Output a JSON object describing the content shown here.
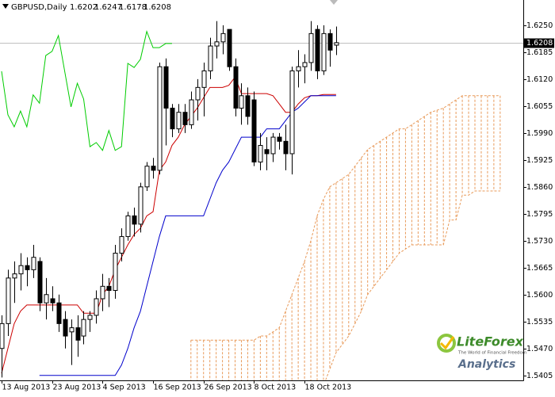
{
  "chart_data": {
    "type": "candlestick",
    "title": "GBPUSD,Daily",
    "ylim": [
      1.5393,
      1.6311
    ],
    "yticks": [
      {
        "value": 1.625,
        "label": "1.6250"
      },
      1.6185,
      {
        "value": 1.612,
        "label": "1.6120"
      },
      1.6055,
      {
        "value": 1.599,
        "label": "1.5990"
      },
      1.5925,
      {
        "value": 1.586,
        "label": "1.5860"
      },
      1.5795,
      {
        "value": 1.573,
        "label": "1.5730"
      },
      1.5665,
      {
        "value": 1.56,
        "label": "1.5600"
      },
      1.5535,
      {
        "value": 1.547,
        "label": "1.5470"
      },
      1.5405
    ],
    "categories": [
      "13 Aug 2013",
      null,
      null,
      null,
      null,
      null,
      null,
      null,
      "23 Aug 2013",
      null,
      null,
      null,
      null,
      null,
      null,
      null,
      "4 Sep 2013",
      null,
      null,
      null,
      null,
      null,
      null,
      null,
      "16 Sep 2013",
      null,
      null,
      null,
      null,
      null,
      null,
      null,
      "26 Sep 2013",
      null,
      null,
      null,
      null,
      null,
      null,
      null,
      "8 Oct 2013",
      null,
      null,
      null,
      null,
      null,
      null,
      null,
      "18 Oct 2013",
      null,
      null,
      null,
      null,
      null,
      null,
      null,
      null,
      null,
      null,
      null,
      null,
      null,
      null,
      null,
      null,
      null,
      null,
      null,
      null,
      null,
      null,
      null,
      null,
      null,
      null,
      null,
      null,
      null,
      null,
      null
    ],
    "open": [
      1.547,
      1.553,
      1.564,
      1.565,
      1.567,
      1.566,
      1.568,
      1.558,
      1.559,
      1.558,
      1.554,
      1.551,
      1.552,
      1.55,
      1.554,
      1.555,
      1.559,
      1.562,
      1.561,
      1.57,
      1.574,
      1.579,
      1.577,
      1.586,
      1.591,
      1.59,
      1.615,
      1.605,
      1.6,
      1.604,
      1.601,
      1.607,
      1.61,
      1.614,
      1.62,
      1.621,
      1.624,
      1.615,
      1.605,
      1.608,
      1.607,
      1.592,
      1.595,
      1.594,
      1.598,
      1.597,
      1.594,
      1.614,
      1.615,
      1.616,
      1.624,
      1.614,
      1.623,
      1.6202,
      null,
      null,
      null,
      null,
      null,
      null,
      null,
      null,
      null,
      null,
      null,
      null,
      null,
      null,
      null,
      null,
      null,
      null,
      null,
      null,
      null,
      null,
      null,
      null,
      null,
      null
    ],
    "high": [
      1.555,
      1.566,
      1.568,
      1.57,
      1.569,
      1.572,
      1.569,
      1.564,
      1.562,
      1.56,
      1.556,
      1.554,
      1.555,
      1.556,
      1.556,
      1.561,
      1.565,
      1.564,
      1.572,
      1.576,
      1.58,
      1.581,
      1.587,
      1.592,
      1.593,
      1.616,
      1.617,
      1.606,
      1.606,
      1.606,
      1.609,
      1.612,
      1.616,
      1.622,
      1.626,
      1.625,
      1.624,
      1.617,
      1.611,
      1.61,
      1.609,
      1.599,
      1.598,
      1.599,
      1.599,
      1.601,
      1.615,
      1.619,
      1.618,
      1.626,
      1.625,
      1.625,
      1.624,
      1.6247,
      null,
      null,
      null,
      null,
      null,
      null,
      null,
      null,
      null,
      null,
      null,
      null,
      null,
      null,
      null,
      null,
      null,
      null,
      null,
      null,
      null,
      null,
      null,
      null,
      null,
      null
    ],
    "low": [
      1.54,
      1.55,
      1.558,
      1.561,
      1.562,
      1.564,
      1.556,
      1.554,
      1.556,
      1.551,
      1.547,
      1.543,
      1.545,
      1.548,
      1.551,
      1.553,
      1.556,
      1.557,
      1.559,
      1.568,
      1.573,
      1.574,
      1.575,
      1.585,
      1.588,
      1.589,
      1.596,
      1.598,
      1.599,
      1.599,
      1.6,
      1.602,
      1.603,
      1.612,
      1.617,
      1.618,
      1.614,
      1.603,
      1.601,
      1.601,
      1.591,
      1.59,
      1.59,
      1.592,
      1.595,
      1.59,
      1.589,
      1.61,
      1.611,
      1.614,
      1.612,
      1.613,
      1.615,
      1.6178,
      null,
      null,
      null,
      null,
      null,
      null,
      null,
      null,
      null,
      null,
      null,
      null,
      null,
      null,
      null,
      null,
      null,
      null,
      null,
      null,
      null,
      null,
      null,
      null,
      null,
      null
    ],
    "close": [
      1.553,
      1.564,
      1.565,
      1.567,
      1.566,
      1.569,
      1.558,
      1.56,
      1.558,
      1.553,
      1.55,
      1.552,
      1.549,
      1.554,
      1.555,
      1.559,
      1.562,
      1.561,
      1.57,
      1.574,
      1.579,
      1.577,
      1.586,
      1.591,
      1.59,
      1.615,
      1.605,
      1.6,
      1.604,
      1.601,
      1.607,
      1.61,
      1.614,
      1.62,
      1.621,
      1.623,
      1.615,
      1.605,
      1.608,
      1.603,
      1.592,
      1.596,
      1.594,
      1.598,
      1.597,
      1.594,
      1.614,
      1.615,
      1.616,
      1.623,
      1.614,
      1.623,
      1.619,
      1.6208,
      null,
      null,
      null,
      null,
      null,
      null,
      null,
      null,
      null,
      null,
      null,
      null,
      null,
      null,
      null,
      null,
      null,
      null,
      null,
      null,
      null,
      null,
      null,
      null,
      null,
      null
    ],
    "series": [
      {
        "color": "#cc0000",
        "values": [
          1.541,
          1.547,
          1.553,
          1.556,
          1.5575,
          1.5575,
          1.5575,
          1.5575,
          1.5575,
          1.5575,
          1.5575,
          1.5575,
          1.5575,
          1.5555,
          1.5555,
          1.5555,
          1.56,
          1.562,
          1.566,
          1.569,
          1.572,
          1.5745,
          1.576,
          1.579,
          1.58,
          1.59,
          1.592,
          1.596,
          1.598,
          1.601,
          1.603,
          1.605,
          1.6075,
          1.61,
          1.61,
          1.61,
          1.6105,
          1.6125,
          1.6085,
          1.6085,
          1.6085,
          1.6085,
          1.6085,
          1.608,
          1.606,
          1.604,
          1.604,
          1.606,
          1.6075,
          1.608,
          1.608,
          1.6083,
          1.6083,
          1.6083,
          null,
          null,
          null,
          null,
          null,
          null,
          null,
          null,
          null,
          null,
          null,
          null,
          null,
          null,
          null,
          null,
          null,
          null,
          null,
          null,
          null,
          null,
          null,
          null,
          null,
          null
        ]
      },
      {
        "color": "#0000cc",
        "values": [
          null,
          null,
          null,
          null,
          null,
          null,
          1.5405,
          1.5405,
          1.5405,
          1.5405,
          1.5405,
          1.5405,
          1.5405,
          1.5405,
          1.5405,
          1.5405,
          1.5405,
          1.5405,
          1.5405,
          1.543,
          1.547,
          1.552,
          1.556,
          1.562,
          1.568,
          1.574,
          1.579,
          1.579,
          1.579,
          1.579,
          1.579,
          1.579,
          1.579,
          1.583,
          1.587,
          1.59,
          1.592,
          1.595,
          1.598,
          1.598,
          1.598,
          1.598,
          1.6,
          1.6,
          1.6,
          1.602,
          1.604,
          1.605,
          1.6065,
          1.608,
          1.608,
          1.608,
          1.608,
          1.608,
          null,
          null,
          null,
          null,
          null,
          null,
          null,
          null,
          null,
          null,
          null,
          null,
          null,
          null,
          null,
          null,
          null,
          null,
          null,
          null,
          null,
          null,
          null,
          null,
          null,
          null
        ]
      },
      {
        "color": "#00cc00",
        "values": [
          1.6139,
          1.6034,
          1.6005,
          1.6043,
          1.6005,
          1.6082,
          1.6062,
          1.6177,
          1.6187,
          1.6225,
          1.6139,
          1.6053,
          1.611,
          1.6072,
          1.5957,
          1.5967,
          1.5948,
          1.5996,
          1.5948,
          1.5957,
          1.6158,
          1.6148,
          1.6168,
          1.6235,
          1.6196,
          1.6196,
          1.6206,
          1.6206,
          null,
          null,
          null,
          null,
          null,
          null,
          null,
          null,
          null,
          null,
          null,
          null,
          null,
          null,
          null,
          null,
          null,
          null,
          null,
          null,
          null,
          null,
          null,
          null,
          null,
          null,
          null,
          null,
          null,
          null,
          null,
          null,
          null,
          null,
          null,
          null,
          null,
          null,
          null,
          null,
          null,
          null,
          null,
          null,
          null,
          null,
          null,
          null,
          null,
          null,
          null,
          null
        ]
      }
    ],
    "cloud": {
      "color": "#e89a5a",
      "span_a": [
        null,
        null,
        null,
        null,
        null,
        null,
        null,
        null,
        null,
        null,
        null,
        null,
        null,
        null,
        null,
        null,
        null,
        null,
        null,
        null,
        null,
        null,
        null,
        null,
        null,
        null,
        null,
        null,
        null,
        null,
        1.549,
        1.549,
        1.549,
        1.549,
        1.549,
        1.549,
        1.549,
        1.549,
        1.549,
        1.549,
        1.549,
        1.55,
        1.55,
        1.551,
        1.552,
        1.556,
        1.56,
        1.564,
        1.568,
        1.573,
        1.579,
        1.583,
        1.586,
        1.587,
        1.588,
        1.589,
        1.591,
        1.593,
        1.595,
        1.596,
        1.597,
        1.598,
        1.599,
        1.6,
        1.6,
        1.601,
        1.602,
        1.603,
        1.604,
        1.6045,
        1.605,
        1.606,
        1.607,
        1.608,
        1.608,
        1.608,
        1.608,
        1.608,
        1.608,
        1.608
      ],
      "span_b": [
        null,
        null,
        null,
        null,
        null,
        null,
        null,
        null,
        null,
        null,
        null,
        null,
        null,
        null,
        null,
        null,
        null,
        null,
        null,
        null,
        null,
        null,
        null,
        null,
        null,
        null,
        null,
        null,
        null,
        null,
        1.538,
        1.538,
        1.538,
        1.538,
        1.538,
        1.538,
        1.538,
        1.538,
        1.538,
        1.538,
        1.538,
        1.538,
        1.538,
        1.538,
        1.538,
        1.538,
        1.538,
        1.538,
        1.538,
        1.538,
        1.538,
        1.538,
        1.542,
        1.546,
        1.548,
        1.55,
        1.553,
        1.556,
        1.56,
        1.562,
        1.564,
        1.566,
        1.568,
        1.57,
        1.571,
        1.572,
        1.572,
        1.572,
        1.572,
        1.572,
        1.572,
        1.578,
        1.578,
        1.584,
        1.584,
        1.585,
        1.585,
        1.585,
        1.585,
        1.585
      ]
    },
    "logo": {
      "name": "LiteForex",
      "slogan": "The World of Financial Freedom",
      "product": "Analytics"
    }
  }
}
